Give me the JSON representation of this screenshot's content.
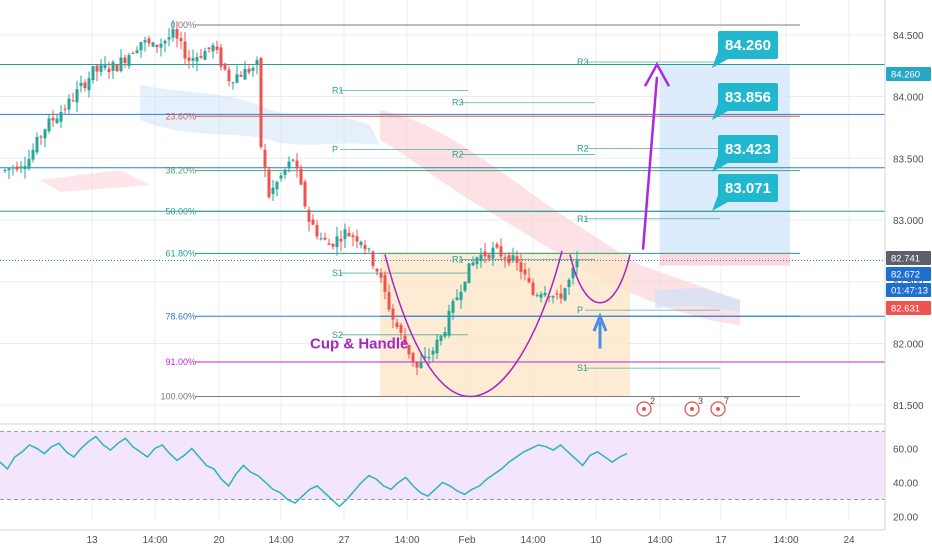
{
  "chart_data": [
    {
      "type": "candlestick",
      "title": "",
      "ylim": [
        81.38,
        84.62
      ],
      "price_axis": {
        "ticks": [
          "84.500",
          "84.000",
          "83.500",
          "83.000",
          "82.500",
          "82.000",
          "81.500"
        ],
        "tick_values": [
          84.5,
          84.0,
          83.5,
          83.0,
          82.5,
          82.0,
          81.5
        ]
      },
      "x_axis": {
        "ticks": [
          "13",
          "14:00",
          "20",
          "14:00",
          "27",
          "14:00",
          "Feb",
          "14:00",
          "10",
          "14:00",
          "17",
          "14:00",
          "24"
        ]
      },
      "candles": {
        "n": 155,
        "close_path": [
          [
            0,
            83.4
          ],
          [
            6,
            83.5
          ],
          [
            10,
            83.75
          ],
          [
            16,
            83.95
          ],
          [
            22,
            84.2
          ],
          [
            28,
            84.25
          ],
          [
            34,
            84.45
          ],
          [
            37,
            84.4
          ],
          [
            42,
            84.5
          ],
          [
            46,
            84.3
          ],
          [
            52,
            84.4
          ],
          [
            56,
            84.15
          ],
          [
            60,
            84.2
          ],
          [
            63,
            84.25
          ],
          [
            64,
            83.6
          ],
          [
            66,
            83.2
          ],
          [
            69,
            83.35
          ],
          [
            72,
            83.5
          ],
          [
            76,
            83.0
          ],
          [
            79,
            82.85
          ],
          [
            81,
            82.8
          ],
          [
            85,
            82.9
          ],
          [
            89,
            82.85
          ],
          [
            93,
            82.6
          ],
          [
            97,
            82.2
          ],
          [
            100,
            82.0
          ],
          [
            103,
            81.8
          ],
          [
            106,
            81.9
          ],
          [
            109,
            82.05
          ],
          [
            112,
            82.3
          ],
          [
            115,
            82.55
          ],
          [
            118,
            82.7
          ],
          [
            122,
            82.75
          ],
          [
            126,
            82.7
          ],
          [
            129,
            82.6
          ],
          [
            132,
            82.4
          ],
          [
            135,
            82.45
          ],
          [
            138,
            82.35
          ],
          [
            141,
            82.5
          ],
          [
            143,
            82.65
          ]
        ]
      },
      "fib_levels": [
        {
          "label": "0.00%",
          "value": 84.58,
          "color": "#787b86"
        },
        {
          "label": "23.60%",
          "value": 83.84,
          "color": "#e8553d"
        },
        {
          "label": "38.20%",
          "value": 83.4,
          "color": "#4aa866"
        },
        {
          "label": "50.00%",
          "value": 83.07,
          "color": "#2a9d8f"
        },
        {
          "label": "61.80%",
          "value": 82.73,
          "color": "#2a9d8f"
        },
        {
          "label": "78.60%",
          "value": 82.22,
          "color": "#2b7bd8"
        },
        {
          "label": "91.00%",
          "value": 81.85,
          "color": "#c026d3"
        },
        {
          "label": "100.00%",
          "value": 81.57,
          "color": "#787b86"
        }
      ],
      "pivot_labels": [
        {
          "label": "R1",
          "value": 84.05
        },
        {
          "label": "R3",
          "value": 83.95
        },
        {
          "label": "P",
          "value": 83.57
        },
        {
          "label": "R2",
          "value": 83.53
        },
        {
          "label": "R1",
          "value": 82.68
        },
        {
          "label": "S1",
          "value": 82.57
        },
        {
          "label": "S2",
          "value": 82.07
        },
        {
          "label": "R3",
          "value": 84.28
        },
        {
          "label": "R2",
          "value": 83.58
        },
        {
          "label": "R1",
          "value": 83.01
        },
        {
          "label": "P",
          "value": 82.27
        },
        {
          "label": "S1",
          "value": 81.8
        }
      ],
      "callouts": [
        {
          "label": "84.260",
          "value": 84.26
        },
        {
          "label": "83.856",
          "value": 83.856
        },
        {
          "label": "83.423",
          "value": 83.423
        },
        {
          "label": "83.071",
          "value": 83.071
        }
      ],
      "price_tags": [
        {
          "label": "84.260",
          "value": 84.26,
          "color": "#26a7c6"
        },
        {
          "label": "82.741",
          "value": 82.741,
          "color": "#5d606b"
        },
        {
          "label": "82.672",
          "value": 82.672,
          "color": "#1f6fd1"
        },
        {
          "label": "01:47:13",
          "value": 82.6,
          "color": "#1f6fd1"
        },
        {
          "label": "82.631",
          "value": 82.631,
          "color": "#ef5350"
        }
      ],
      "pattern_label": "Cup & Handle",
      "event_markers": [
        "2",
        "3",
        "7"
      ]
    },
    {
      "type": "line",
      "title": "",
      "ylim": [
        18,
        72
      ],
      "y_ticks": [
        "60.00",
        "40.00",
        "20.00"
      ],
      "y_tick_values": [
        60,
        40,
        20
      ],
      "bands": [
        70,
        30
      ],
      "series": [
        {
          "values": [
            52,
            48,
            55,
            58,
            62,
            60,
            57,
            61,
            63,
            58,
            55,
            60,
            64,
            67,
            62,
            59,
            63,
            66,
            61,
            58,
            55,
            60,
            62,
            57,
            53,
            56,
            60,
            55,
            50,
            48,
            42,
            38,
            45,
            50,
            46,
            44,
            40,
            36,
            34,
            30,
            28,
            32,
            36,
            38,
            34,
            30,
            26,
            30,
            35,
            40,
            44,
            42,
            38,
            36,
            40,
            43,
            38,
            34,
            32,
            36,
            40,
            38,
            35,
            33,
            36,
            38,
            42,
            45,
            48,
            52,
            55,
            58,
            60,
            62,
            61,
            59,
            62,
            58,
            54,
            50,
            56,
            58,
            55,
            52,
            55,
            57
          ]
        }
      ]
    }
  ]
}
